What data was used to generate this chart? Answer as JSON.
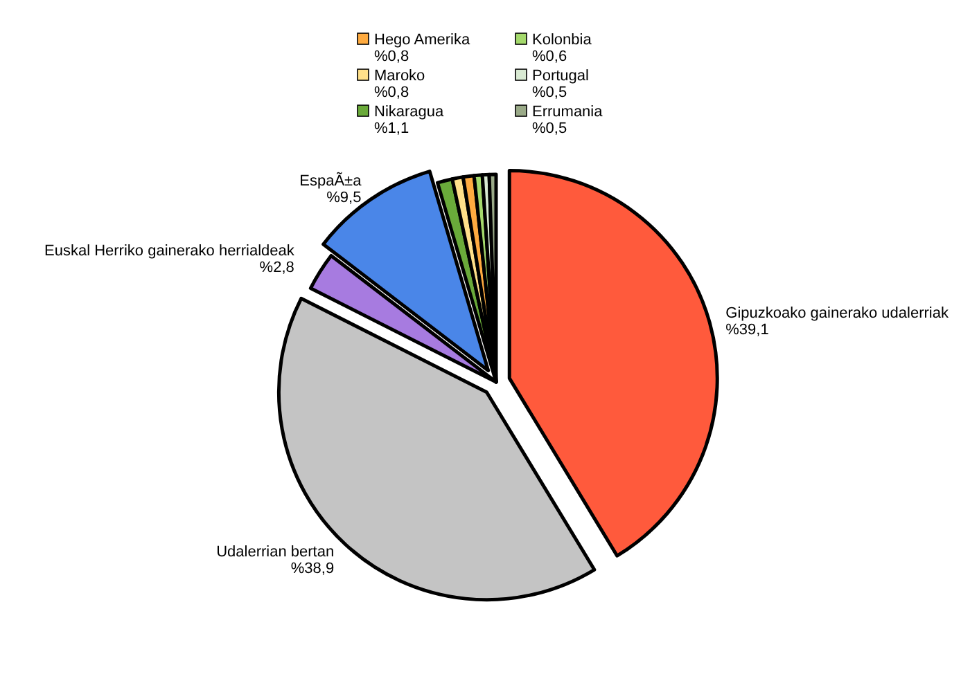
{
  "chart_data": {
    "type": "pie",
    "categories": [
      "Gipuzkoako gainerako udalerriak",
      "Udalerrian bertan",
      "Euskal Herriko gainerako herrialdeak",
      "EspaÃ±a",
      "Nikaragua",
      "Maroko",
      "Hego Amerika",
      "Kolonbia",
      "Portugal",
      "Errumania"
    ],
    "values": [
      39.1,
      38.9,
      2.8,
      9.5,
      1.1,
      0.8,
      0.8,
      0.6,
      0.5,
      0.5
    ],
    "legend": "top",
    "value_labels": [
      "%39,1",
      "%38,9",
      "%2,8",
      "%9,5",
      "%1,1",
      "%0,8",
      "%0,8",
      "%0,6",
      "%0,5",
      "%0,5"
    ],
    "colors": [
      "#ff5a3c",
      "#c4c4c4",
      "#a77be0",
      "#4a86e8",
      "#6aaa3a",
      "#ffe08a",
      "#ffab40",
      "#a4d96c",
      "#d9ead3",
      "#9aaa88"
    ]
  }
}
